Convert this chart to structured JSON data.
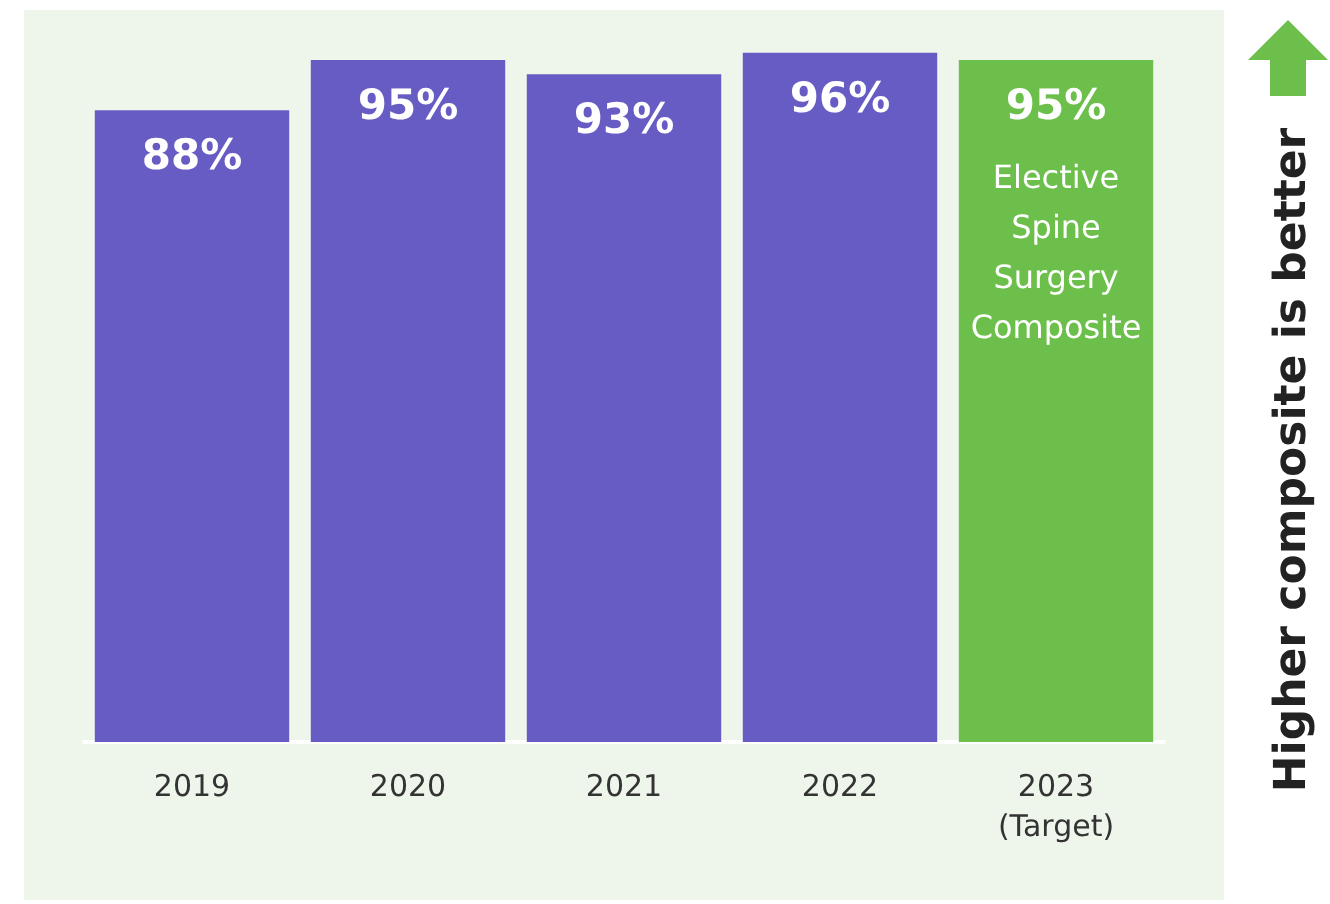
{
  "chart_data": {
    "type": "bar",
    "categories": [
      "2019",
      "2020",
      "2021",
      "2022",
      "2023\n(Target)"
    ],
    "values": [
      88,
      95,
      93,
      96,
      95
    ],
    "value_labels": [
      "88%",
      "95%",
      "93%",
      "96%",
      "95%"
    ],
    "colors": [
      "#675bc4",
      "#675bc4",
      "#675bc4",
      "#675bc4",
      "#6cbf4a"
    ],
    "tick_labels": "x",
    "annotations": [
      "Elective\nSpine\nSurgery\nComposite",
      "Higher composite is better"
    ]
  }
}
